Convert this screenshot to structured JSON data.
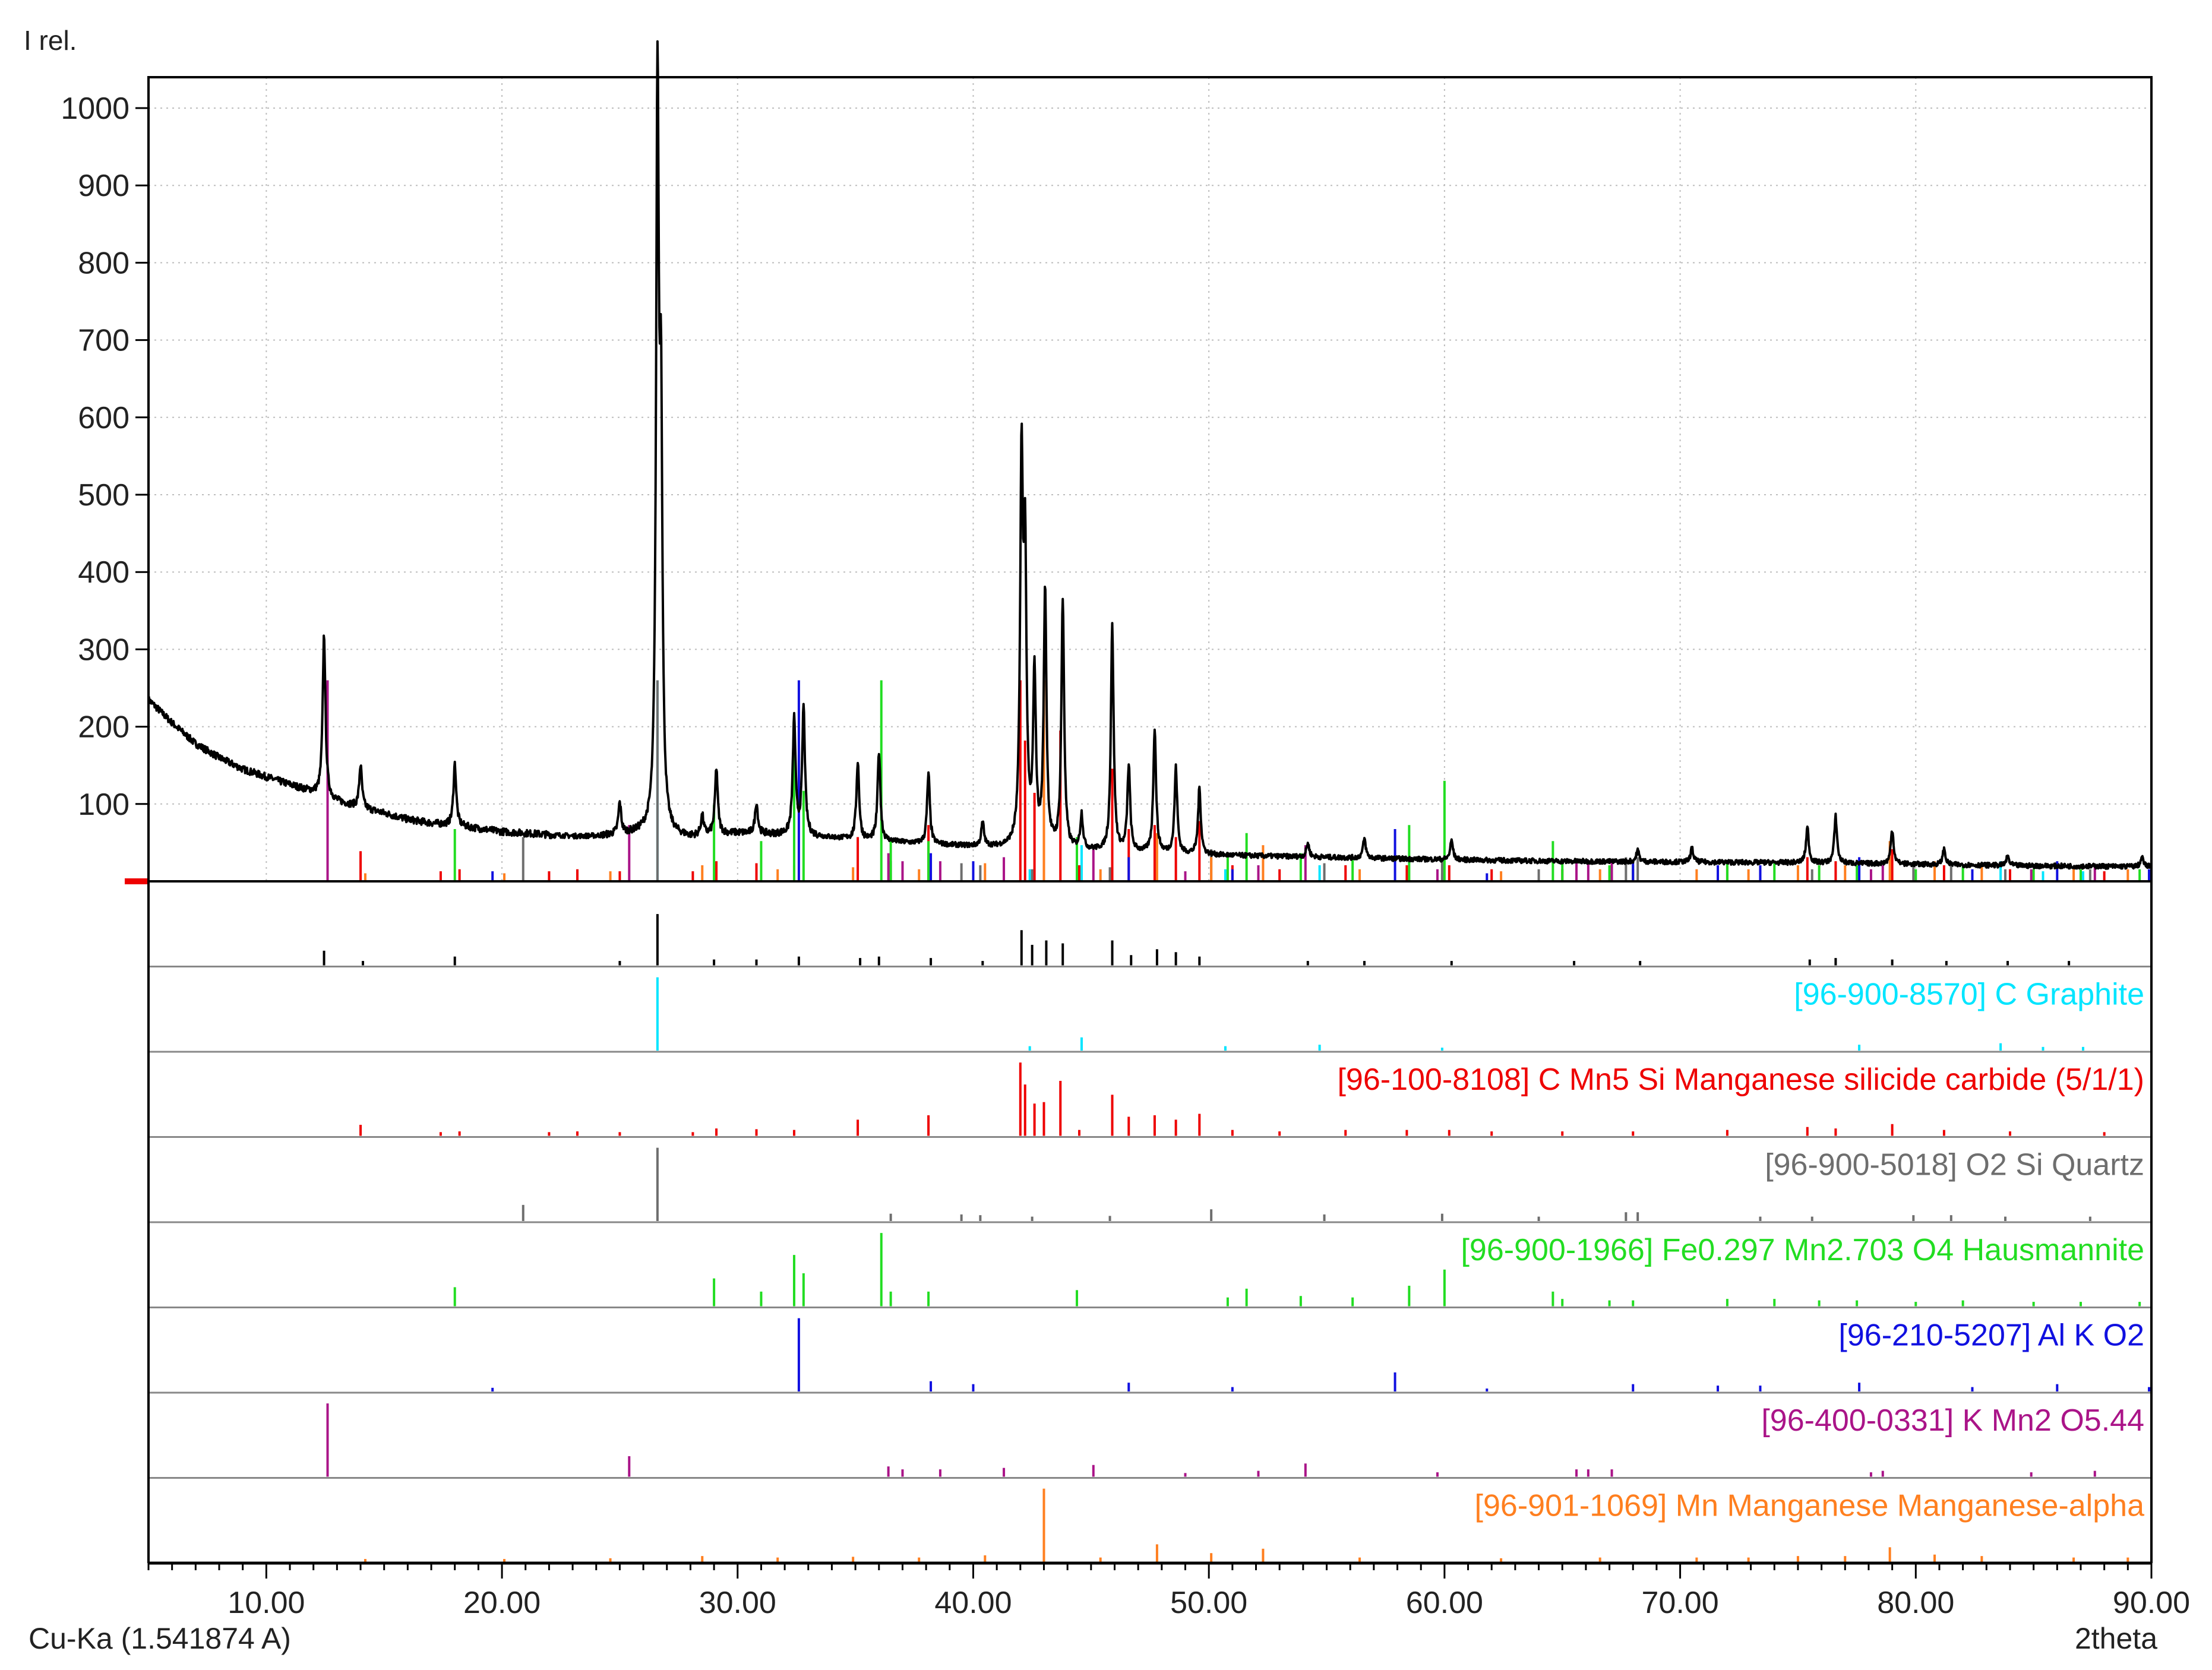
{
  "chart_data": {
    "type": "line",
    "ylabel": "I rel.",
    "xlabel": "2theta",
    "xlim": [
      5,
      90
    ],
    "ylim": [
      0,
      1000
    ],
    "x_ticks": [
      10,
      20,
      30,
      40,
      50,
      60,
      70,
      80,
      90
    ],
    "x_tick_labels": [
      "10.00",
      "20.00",
      "30.00",
      "40.00",
      "50.00",
      "60.00",
      "70.00",
      "80.00",
      "90.00"
    ],
    "y_ticks": [
      100,
      200,
      300,
      400,
      500,
      600,
      700,
      800,
      900,
      1000
    ],
    "y_tick_labels": [
      "100",
      "200",
      "300",
      "400",
      "500",
      "600",
      "700",
      "800",
      "900",
      "1000"
    ],
    "grid": true,
    "radiation_label": "Cu-Ka (1.541874 A)",
    "background": [
      [
        5,
        235
      ],
      [
        6,
        205
      ],
      [
        7,
        178
      ],
      [
        8,
        160
      ],
      [
        9,
        145
      ],
      [
        10,
        135
      ],
      [
        11,
        125
      ],
      [
        12,
        115
      ],
      [
        13,
        103
      ],
      [
        14,
        95
      ],
      [
        15,
        88
      ],
      [
        16,
        80
      ],
      [
        17,
        75
      ],
      [
        18,
        72
      ],
      [
        19,
        68
      ],
      [
        20,
        64
      ],
      [
        21,
        62
      ],
      [
        22,
        60
      ],
      [
        23,
        58
      ],
      [
        24,
        58
      ],
      [
        25,
        60
      ],
      [
        26,
        62
      ],
      [
        27,
        58
      ],
      [
        28,
        56
      ],
      [
        29,
        60
      ],
      [
        30,
        62
      ],
      [
        32,
        60
      ],
      [
        34,
        56
      ],
      [
        36,
        52
      ],
      [
        38,
        48
      ],
      [
        40,
        45
      ],
      [
        42,
        42
      ],
      [
        44,
        40
      ],
      [
        46,
        38
      ],
      [
        48,
        36
      ],
      [
        50,
        34
      ],
      [
        55,
        31
      ],
      [
        60,
        28
      ],
      [
        65,
        26
      ],
      [
        70,
        25
      ],
      [
        75,
        24
      ],
      [
        80,
        22
      ],
      [
        85,
        20
      ],
      [
        90,
        19
      ]
    ],
    "measured_peaks": [
      {
        "x": 12.45,
        "y": 210
      },
      {
        "x": 14.0,
        "y": 55
      },
      {
        "x": 18.0,
        "y": 80
      },
      {
        "x": 25.0,
        "y": 40
      },
      {
        "x": 26.6,
        "y": 940
      },
      {
        "x": 26.75,
        "y": 500
      },
      {
        "x": 28.5,
        "y": 25
      },
      {
        "x": 29.1,
        "y": 85
      },
      {
        "x": 30.8,
        "y": 40
      },
      {
        "x": 32.4,
        "y": 150
      },
      {
        "x": 32.8,
        "y": 165
      },
      {
        "x": 35.1,
        "y": 100
      },
      {
        "x": 36.0,
        "y": 115
      },
      {
        "x": 38.1,
        "y": 90
      },
      {
        "x": 40.4,
        "y": 30
      },
      {
        "x": 42.05,
        "y": 480
      },
      {
        "x": 42.2,
        "y": 360
      },
      {
        "x": 42.6,
        "y": 220
      },
      {
        "x": 43.05,
        "y": 330
      },
      {
        "x": 43.8,
        "y": 320
      },
      {
        "x": 44.6,
        "y": 45
      },
      {
        "x": 45.9,
        "y": 290
      },
      {
        "x": 46.6,
        "y": 110
      },
      {
        "x": 47.7,
        "y": 160
      },
      {
        "x": 48.6,
        "y": 110
      },
      {
        "x": 49.6,
        "y": 85
      },
      {
        "x": 54.2,
        "y": 18
      },
      {
        "x": 56.6,
        "y": 25
      },
      {
        "x": 60.3,
        "y": 25
      },
      {
        "x": 68.2,
        "y": 15
      },
      {
        "x": 70.5,
        "y": 18
      },
      {
        "x": 75.4,
        "y": 45
      },
      {
        "x": 76.6,
        "y": 60
      },
      {
        "x": 79.0,
        "y": 45
      },
      {
        "x": 81.2,
        "y": 20
      },
      {
        "x": 83.9,
        "y": 12
      },
      {
        "x": 89.6,
        "y": 12
      }
    ],
    "panels": [
      {
        "name": "",
        "color": "#000000",
        "peaks": [
          [
            12.45,
            20
          ],
          [
            14.1,
            6
          ],
          [
            18.0,
            12
          ],
          [
            25.0,
            6
          ],
          [
            26.6,
            70
          ],
          [
            29.0,
            8
          ],
          [
            30.8,
            8
          ],
          [
            32.6,
            12
          ],
          [
            35.2,
            10
          ],
          [
            36.0,
            12
          ],
          [
            38.2,
            10
          ],
          [
            40.4,
            6
          ],
          [
            42.05,
            48
          ],
          [
            42.5,
            28
          ],
          [
            43.1,
            34
          ],
          [
            43.8,
            30
          ],
          [
            45.9,
            34
          ],
          [
            46.7,
            14
          ],
          [
            47.8,
            22
          ],
          [
            48.6,
            18
          ],
          [
            49.6,
            12
          ],
          [
            54.2,
            6
          ],
          [
            56.6,
            6
          ],
          [
            60.3,
            6
          ],
          [
            65.5,
            6
          ],
          [
            68.3,
            6
          ],
          [
            75.5,
            8
          ],
          [
            76.6,
            10
          ],
          [
            79.0,
            8
          ],
          [
            81.3,
            6
          ],
          [
            83.9,
            6
          ],
          [
            86.5,
            6
          ]
        ]
      },
      {
        "name": "[96-900-8570] C Graphite",
        "color": "#00e5ff",
        "peaks": [
          [
            26.6,
            100
          ],
          [
            42.4,
            6
          ],
          [
            44.6,
            18
          ],
          [
            50.7,
            6
          ],
          [
            54.7,
            8
          ],
          [
            59.9,
            4
          ],
          [
            77.6,
            8
          ],
          [
            83.6,
            10
          ],
          [
            85.4,
            5
          ],
          [
            87.1,
            5
          ]
        ]
      },
      {
        "name": "[96-100-8108] C Mn5 Si Manganese silicide carbide (5/1/1)",
        "color": "#ee0000",
        "peaks": [
          [
            14.0,
            15
          ],
          [
            17.4,
            5
          ],
          [
            18.2,
            6
          ],
          [
            22.0,
            5
          ],
          [
            23.2,
            6
          ],
          [
            25.0,
            5
          ],
          [
            28.1,
            5
          ],
          [
            29.1,
            10
          ],
          [
            30.8,
            9
          ],
          [
            32.4,
            8
          ],
          [
            35.1,
            22
          ],
          [
            38.1,
            28
          ],
          [
            42.0,
            100
          ],
          [
            42.2,
            70
          ],
          [
            42.6,
            44
          ],
          [
            43.0,
            46
          ],
          [
            43.7,
            75
          ],
          [
            44.5,
            8
          ],
          [
            45.9,
            56
          ],
          [
            46.6,
            26
          ],
          [
            47.7,
            28
          ],
          [
            48.6,
            22
          ],
          [
            49.6,
            30
          ],
          [
            51.0,
            8
          ],
          [
            53.0,
            6
          ],
          [
            55.8,
            8
          ],
          [
            58.4,
            8
          ],
          [
            60.2,
            8
          ],
          [
            62.0,
            6
          ],
          [
            65.0,
            6
          ],
          [
            68.0,
            6
          ],
          [
            72.0,
            8
          ],
          [
            75.4,
            12
          ],
          [
            76.6,
            10
          ],
          [
            79.0,
            16
          ],
          [
            81.2,
            8
          ],
          [
            84.0,
            6
          ],
          [
            88.0,
            5
          ]
        ]
      },
      {
        "name": "[96-900-5018] O2 Si  Quartz",
        "color": "#6e6e6e",
        "peaks": [
          [
            20.9,
            22
          ],
          [
            26.6,
            100
          ],
          [
            36.5,
            10
          ],
          [
            39.5,
            9
          ],
          [
            40.3,
            8
          ],
          [
            42.5,
            6
          ],
          [
            45.8,
            7
          ],
          [
            50.1,
            16
          ],
          [
            54.9,
            9
          ],
          [
            59.9,
            10
          ],
          [
            64.0,
            6
          ],
          [
            67.7,
            12
          ],
          [
            68.2,
            12
          ],
          [
            73.4,
            6
          ],
          [
            75.6,
            6
          ],
          [
            79.9,
            8
          ],
          [
            81.5,
            8
          ],
          [
            83.8,
            6
          ],
          [
            87.4,
            6
          ]
        ]
      },
      {
        "name": "[96-900-1966] Fe0.297 Mn2.703 O4  Hausmannite",
        "color": "#22dd22",
        "peaks": [
          [
            18.0,
            26
          ],
          [
            29.0,
            38
          ],
          [
            31.0,
            20
          ],
          [
            32.4,
            70
          ],
          [
            32.8,
            45
          ],
          [
            36.1,
            100
          ],
          [
            36.5,
            20
          ],
          [
            38.1,
            20
          ],
          [
            44.4,
            22
          ],
          [
            50.8,
            12
          ],
          [
            51.6,
            24
          ],
          [
            53.9,
            14
          ],
          [
            56.1,
            12
          ],
          [
            58.5,
            28
          ],
          [
            60.0,
            50
          ],
          [
            64.6,
            20
          ],
          [
            65.0,
            10
          ],
          [
            67.0,
            8
          ],
          [
            68.0,
            8
          ],
          [
            72.0,
            10
          ],
          [
            74.0,
            10
          ],
          [
            75.9,
            8
          ],
          [
            77.5,
            8
          ],
          [
            80.0,
            6
          ],
          [
            82.0,
            8
          ],
          [
            85.0,
            6
          ],
          [
            87.0,
            6
          ],
          [
            89.5,
            6
          ]
        ]
      },
      {
        "name": "[96-210-5207] Al K O2",
        "color": "#1010e0",
        "peaks": [
          [
            19.6,
            5
          ],
          [
            32.6,
            100
          ],
          [
            38.2,
            14
          ],
          [
            40.0,
            10
          ],
          [
            46.6,
            12
          ],
          [
            51.0,
            6
          ],
          [
            57.9,
            26
          ],
          [
            61.8,
            4
          ],
          [
            68.0,
            10
          ],
          [
            71.6,
            8
          ],
          [
            73.4,
            8
          ],
          [
            77.6,
            12
          ],
          [
            82.4,
            6
          ],
          [
            86.0,
            10
          ],
          [
            89.9,
            6
          ]
        ]
      },
      {
        "name": "[96-400-0331] K Mn2 O5.44",
        "color": "#aa1488",
        "peaks": [
          [
            12.6,
            100
          ],
          [
            25.4,
            28
          ],
          [
            36.4,
            14
          ],
          [
            37.0,
            10
          ],
          [
            38.6,
            10
          ],
          [
            41.3,
            12
          ],
          [
            45.1,
            16
          ],
          [
            49.0,
            5
          ],
          [
            52.1,
            8
          ],
          [
            54.1,
            18
          ],
          [
            59.7,
            6
          ],
          [
            65.6,
            10
          ],
          [
            66.1,
            10
          ],
          [
            67.1,
            10
          ],
          [
            78.1,
            6
          ],
          [
            78.6,
            8
          ],
          [
            84.9,
            6
          ],
          [
            87.6,
            8
          ]
        ]
      },
      {
        "name": "[96-901-1069] Mn Manganese Manganese-alpha",
        "color": "#ff7f1f",
        "peaks": [
          [
            14.2,
            4
          ],
          [
            20.1,
            4
          ],
          [
            24.6,
            5
          ],
          [
            28.5,
            8
          ],
          [
            31.7,
            6
          ],
          [
            34.9,
            7
          ],
          [
            37.7,
            6
          ],
          [
            40.5,
            9
          ],
          [
            43.0,
            100
          ],
          [
            45.4,
            6
          ],
          [
            47.8,
            24
          ],
          [
            50.1,
            12
          ],
          [
            52.3,
            18
          ],
          [
            56.4,
            6
          ],
          [
            62.4,
            5
          ],
          [
            66.6,
            6
          ],
          [
            70.7,
            6
          ],
          [
            72.9,
            6
          ],
          [
            75.0,
            8
          ],
          [
            77.0,
            8
          ],
          [
            78.9,
            20
          ],
          [
            80.8,
            10
          ],
          [
            82.8,
            8
          ],
          [
            86.7,
            6
          ],
          [
            89.0,
            6
          ]
        ]
      }
    ]
  }
}
